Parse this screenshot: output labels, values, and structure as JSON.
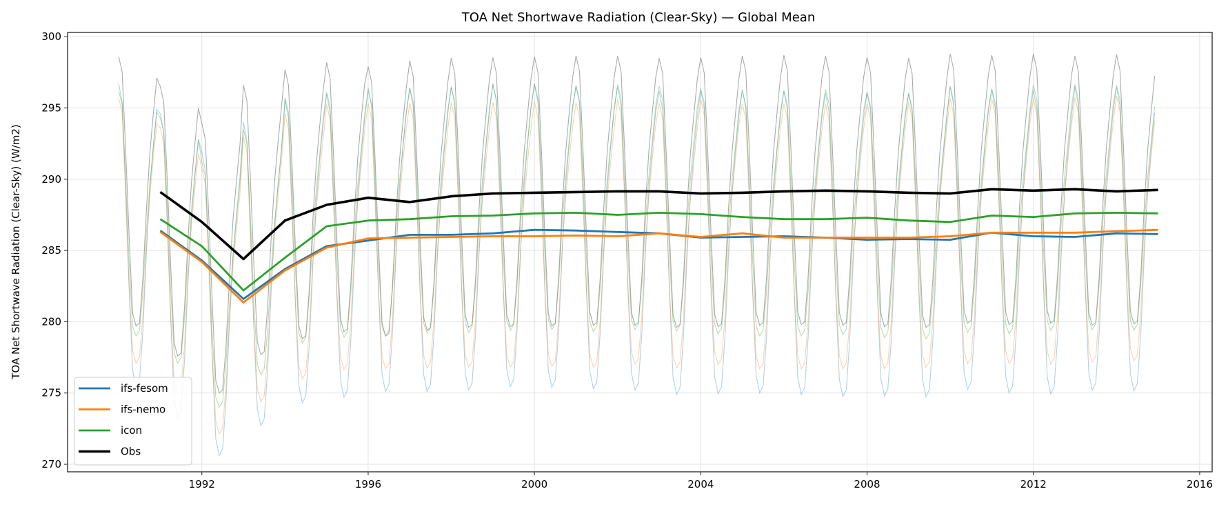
{
  "chart_data": {
    "type": "line",
    "title": "TOA Net Shortwave Radiation (Clear-Sky) — Global Mean",
    "xlabel": "",
    "ylabel": "TOA Net Shortwave Radiation (Clear-Sky) (W/m2)",
    "xlim": [
      1988.77,
      2016.3
    ],
    "ylim": [
      269.47,
      300.3
    ],
    "xticks": [
      1992,
      1996,
      2000,
      2004,
      2008,
      2012,
      2016
    ],
    "yticks": [
      270,
      275,
      280,
      285,
      290,
      295,
      300
    ],
    "grid": true,
    "legend_position": "lower-left",
    "annual_years": [
      1990,
      1991,
      1992,
      1993,
      1994,
      1995,
      1996,
      1997,
      1998,
      1999,
      2000,
      2001,
      2002,
      2003,
      2004,
      2005,
      2006,
      2007,
      2008,
      2009,
      2010,
      2011,
      2012,
      2013,
      2014
    ],
    "annual_x_position": "end-of-year",
    "monthly_range": [
      "1990-01",
      "2014-12"
    ],
    "series": [
      {
        "name": "ifs-fesom",
        "color": "#1f77b4",
        "annual_mean": [
          286.4,
          284.3,
          281.6,
          283.7,
          285.3,
          285.7,
          286.1,
          286.1,
          286.2,
          286.45,
          286.4,
          286.3,
          286.2,
          285.9,
          285.95,
          286.0,
          285.9,
          285.75,
          285.8,
          285.75,
          286.25,
          286.0,
          285.95,
          286.2,
          286.15
        ],
        "seasonal_anomaly": [
          10.3,
          9.0,
          3.0,
          -4.0,
          -9.8,
          -11.0,
          -10.5,
          -7.0,
          -1.5,
          3.0,
          6.0,
          8.5
        ]
      },
      {
        "name": "ifs-nemo",
        "color": "#ff7f0e",
        "annual_mean": [
          286.3,
          284.2,
          281.35,
          283.6,
          285.2,
          285.85,
          285.9,
          285.95,
          286.0,
          286.0,
          286.05,
          286.0,
          286.2,
          285.95,
          286.2,
          285.9,
          285.9,
          285.9,
          285.9,
          286.0,
          286.25,
          286.25,
          286.25,
          286.35,
          286.45
        ],
        "seasonal_anomaly": [
          9.4,
          8.3,
          2.5,
          -3.8,
          -8.3,
          -9.2,
          -8.8,
          -5.8,
          -1.0,
          2.6,
          5.2,
          7.6
        ]
      },
      {
        "name": "icon",
        "color": "#2ca02c",
        "annual_mean": [
          287.2,
          285.3,
          282.2,
          284.5,
          286.7,
          287.1,
          287.2,
          287.4,
          287.45,
          287.6,
          287.65,
          287.5,
          287.65,
          287.55,
          287.35,
          287.2,
          287.2,
          287.3,
          287.1,
          287.0,
          287.45,
          287.35,
          287.6,
          287.65,
          287.6
        ],
        "seasonal_anomaly": [
          9.0,
          8.0,
          3.0,
          -3.0,
          -7.5,
          -8.2,
          -7.8,
          -5.0,
          -0.8,
          2.5,
          5.0,
          7.5
        ]
      },
      {
        "name": "Obs",
        "color": "#000000",
        "annual_mean": [
          289.1,
          287.0,
          284.4,
          287.1,
          288.2,
          288.7,
          288.4,
          288.8,
          289.0,
          289.05,
          289.1,
          289.15,
          289.15,
          289.0,
          289.05,
          289.15,
          289.2,
          289.15,
          289.05,
          289.0,
          289.3,
          289.2,
          289.3,
          289.15,
          289.25
        ],
        "seasonal_anomaly": [
          9.5,
          8.4,
          3.0,
          -3.0,
          -8.5,
          -9.4,
          -9.2,
          -6.0,
          -1.2,
          2.8,
          5.5,
          8.0
        ]
      }
    ]
  }
}
